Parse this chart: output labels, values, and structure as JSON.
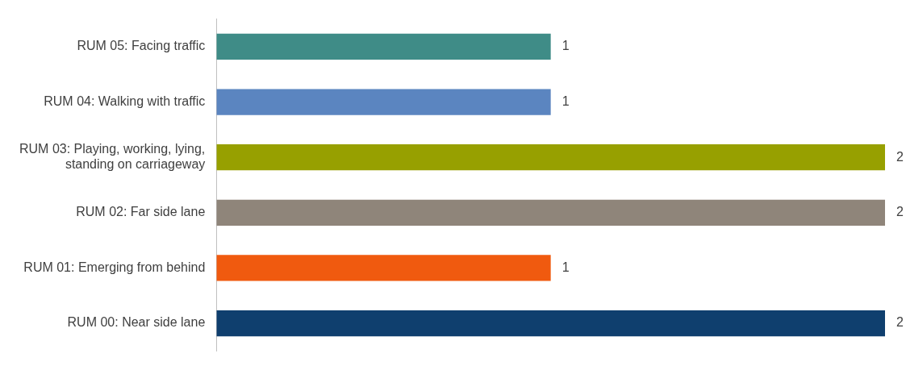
{
  "chart_data": {
    "type": "bar",
    "orientation": "horizontal",
    "categories": [
      "RUM 05: Facing traffic",
      "RUM 04: Walking with traffic",
      "RUM 03: Playing, working, lying, standing on carriageway",
      "RUM 02: Far side lane",
      "RUM 01: Emerging from behind",
      "RUM 00: Near side lane"
    ],
    "values": [
      1,
      1,
      2,
      2,
      1,
      2
    ],
    "colors": [
      "#3f8c87",
      "#5b85c0",
      "#97a000",
      "#8f857a",
      "#f05a0f",
      "#0f3f6e"
    ],
    "xlim": [
      0,
      2
    ],
    "tick_labels": "y",
    "grid": false,
    "legend": false,
    "data_labels": true
  }
}
